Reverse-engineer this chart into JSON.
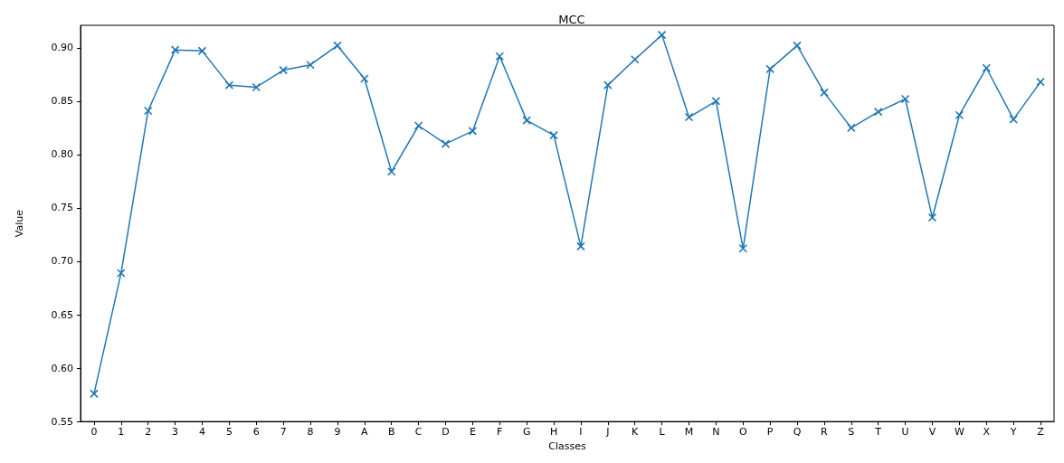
{
  "chart_data": {
    "type": "line",
    "title": "MCC",
    "xlabel": "Classes",
    "ylabel": "Value",
    "categories": [
      "0",
      "1",
      "2",
      "3",
      "4",
      "5",
      "6",
      "7",
      "8",
      "9",
      "A",
      "B",
      "C",
      "D",
      "E",
      "F",
      "G",
      "H",
      "I",
      "J",
      "K",
      "L",
      "M",
      "N",
      "O",
      "P",
      "Q",
      "R",
      "S",
      "T",
      "U",
      "V",
      "W",
      "X",
      "Y",
      "Z"
    ],
    "series": [
      {
        "color": "#1f77b4",
        "values": [
          0.576,
          0.689,
          0.841,
          0.898,
          0.897,
          0.865,
          0.863,
          0.879,
          0.884,
          0.902,
          0.871,
          0.784,
          0.827,
          0.81,
          0.822,
          0.892,
          0.832,
          0.818,
          0.714,
          0.865,
          0.889,
          0.912,
          0.835,
          0.85,
          0.712,
          0.88,
          0.902,
          0.858,
          0.825,
          0.84,
          0.852,
          0.741,
          0.837,
          0.881,
          0.833,
          0.868
        ]
      }
    ],
    "ylim": [
      0.55,
      0.921
    ],
    "yticks": [
      {
        "value": 0.55,
        "label": "0.55"
      },
      {
        "value": 0.6,
        "label": "0.60"
      },
      {
        "value": 0.65,
        "label": "0.65"
      },
      {
        "value": 0.7,
        "label": "0.70"
      },
      {
        "value": 0.75,
        "label": "0.75"
      },
      {
        "value": 0.8,
        "label": "0.80"
      },
      {
        "value": 0.85,
        "label": "0.85"
      },
      {
        "value": 0.9,
        "label": "0.90"
      }
    ],
    "grid": false,
    "marker": "cross",
    "line_style": "solid"
  }
}
